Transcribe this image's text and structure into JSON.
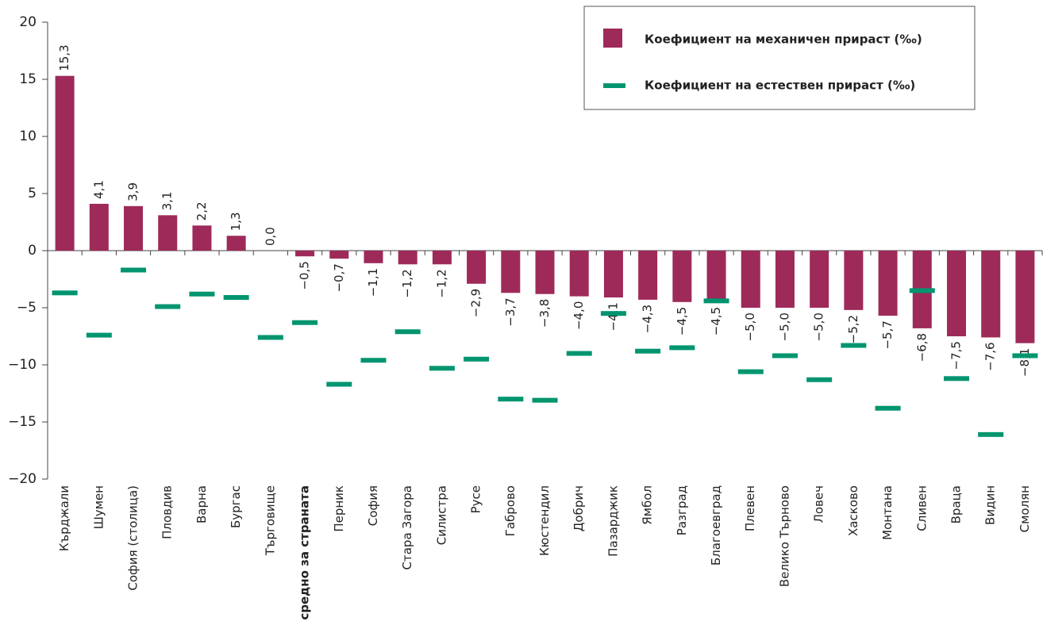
{
  "chart_data": {
    "type": "bar",
    "categories": [
      "Кърджали",
      "Шумен",
      "София (столица)",
      "Пловдив",
      "Варна",
      "Бургас",
      "Търговище",
      "средно за страната",
      "Перник",
      "София",
      "Стара Загора",
      "Силистра",
      "Русе",
      "Габрово",
      "Кюстендил",
      "Добрич",
      "Пазарджик",
      "Ямбол",
      "Разград",
      "Благоевград",
      "Плевен",
      "Велико Търново",
      "Ловеч",
      "Хасково",
      "Монтана",
      "Сливен",
      "Враца",
      "Видин",
      "Смолян"
    ],
    "series": [
      {
        "name": "Коефициент на механичен прираст (‰)",
        "color": "#9e2a5a",
        "values": [
          15.3,
          4.1,
          3.9,
          3.1,
          2.2,
          1.3,
          0.0,
          -0.5,
          -0.7,
          -1.1,
          -1.2,
          -1.2,
          -2.9,
          -3.7,
          -3.8,
          -4.0,
          -4.1,
          -4.3,
          -4.5,
          -4.5,
          -5.0,
          -5.0,
          -5.0,
          -5.2,
          -5.7,
          -6.8,
          -7.5,
          -7.6,
          -8.1
        ],
        "value_labels": [
          "15,3",
          "4,1",
          "3,9",
          "3,1",
          "2,2",
          "1,3",
          "0,0",
          "−0,5",
          "−0,7",
          "−1,1",
          "−1,2",
          "−1,2",
          "−2,9",
          "−3,7",
          "−3,8",
          "−4,0",
          "−4,1",
          "−4,3",
          "−4,5",
          "−4,5",
          "−5,0",
          "−5,0",
          "−5,0",
          "−5,2",
          "−5,7",
          "−6,8",
          "−7,5",
          "−7,6",
          "−8,1"
        ]
      },
      {
        "name": "Коефициент на естествен прираст (‰)",
        "color": "#00956f",
        "marker": "dash",
        "values": [
          -3.7,
          -7.4,
          -1.7,
          -4.9,
          -3.8,
          -4.1,
          -7.6,
          -6.3,
          -11.7,
          -9.6,
          -7.1,
          -10.3,
          -9.5,
          -13.0,
          -13.1,
          -9.0,
          -5.5,
          -8.8,
          -8.5,
          -4.4,
          -10.6,
          -9.2,
          -11.3,
          -8.3,
          -13.8,
          -3.5,
          -11.2,
          -16.1,
          -9.2
        ]
      }
    ],
    "ylim": [
      -20,
      20
    ],
    "yticks": [
      20,
      15,
      10,
      5,
      0,
      {
        "value": -5,
        "label": "−5"
      },
      {
        "value": -10,
        "label": "−10"
      },
      {
        "value": -15,
        "label": "−15"
      },
      {
        "value": -20,
        "label": "−20"
      }
    ],
    "grid": false
  }
}
